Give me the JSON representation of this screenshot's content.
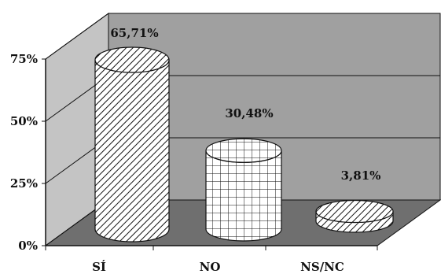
{
  "chart_data": {
    "type": "bar",
    "categories": [
      "SÍ",
      "NO",
      "NS/NC"
    ],
    "values": [
      65.71,
      30.48,
      3.81
    ],
    "value_labels": [
      "65,71%",
      "30,48%",
      "3,81%"
    ],
    "y_ticks": [
      "0%",
      "25%",
      "50%",
      "75%"
    ],
    "ylim": [
      0,
      75
    ],
    "grid": true,
    "legend": "none",
    "style": "3d cylinders",
    "colors": {
      "back_wall": "#a0a0a0",
      "side_wall": "#c4c4c4",
      "floor": "#6f6f6f",
      "cylinder_face": "#ffffff",
      "cylinder_line": "#111111"
    }
  }
}
